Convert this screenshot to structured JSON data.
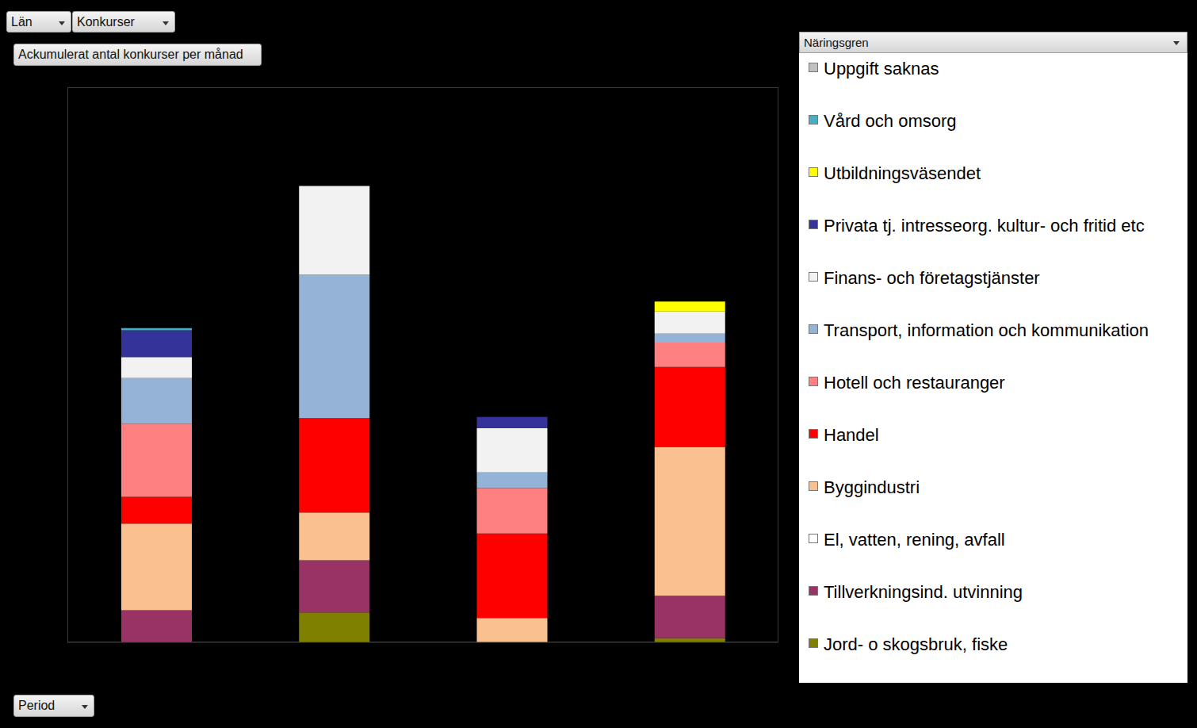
{
  "chart_data": {
    "type": "bar",
    "title": "Ackumulerat antal konkurser per månad",
    "filter_buttons": [
      "Län",
      "Konkurser"
    ],
    "axis_field": "Period",
    "legend_title": "Näringsgren",
    "categories": [
      null,
      null,
      null,
      null
    ],
    "stacked": true,
    "tick_labels": false,
    "grid": false,
    "legend": "right",
    "ylim": [
      0,
      50
    ],
    "yticks": [
      0,
      10,
      20,
      30,
      40,
      50
    ],
    "series": [
      {
        "name": "Jord- o skogsbruk, fiske",
        "color": "#808000",
        "values": [
          0,
          2.7,
          0,
          0.4
        ]
      },
      {
        "name": "Tillverkningsind. utvinning",
        "color": "#993366",
        "values": [
          2.9,
          4.7,
          0,
          3.8
        ]
      },
      {
        "name": "El, vatten, rening, avfall",
        "color": "#ffffff",
        "values": [
          0,
          0,
          0,
          0
        ]
      },
      {
        "name": "Byggindustri",
        "color": "#fac090",
        "values": [
          7.8,
          4.3,
          2.2,
          13.4
        ]
      },
      {
        "name": "Handel",
        "color": "#ff0000",
        "values": [
          2.4,
          8.5,
          7.6,
          7.2
        ]
      },
      {
        "name": "Hotell och restauranger",
        "color": "#ff8080",
        "values": [
          6.6,
          0,
          4.1,
          2.2
        ]
      },
      {
        "name": "Transport, information och kommunikation",
        "color": "#95b3d7",
        "values": [
          4.1,
          12.9,
          1.4,
          0.8
        ]
      },
      {
        "name": "Finans- och företagstjänster",
        "color": "#f2f2f2",
        "values": [
          1.9,
          8.0,
          4.0,
          2.0
        ]
      },
      {
        "name": "Privata tj. intresseorg. kultur- och fritid etc",
        "color": "#333399",
        "values": [
          2.4,
          0,
          1.0,
          0
        ]
      },
      {
        "name": "Utbildningsväsendet",
        "color": "#ffff00",
        "values": [
          0,
          0,
          0,
          0.9
        ]
      },
      {
        "name": "Vård och omsorg",
        "color": "#4bacc6",
        "values": [
          0.2,
          0,
          0,
          0
        ]
      },
      {
        "name": "Uppgift saknas",
        "color": "#c0c0c0",
        "values": [
          0,
          0,
          0,
          0
        ]
      }
    ]
  }
}
